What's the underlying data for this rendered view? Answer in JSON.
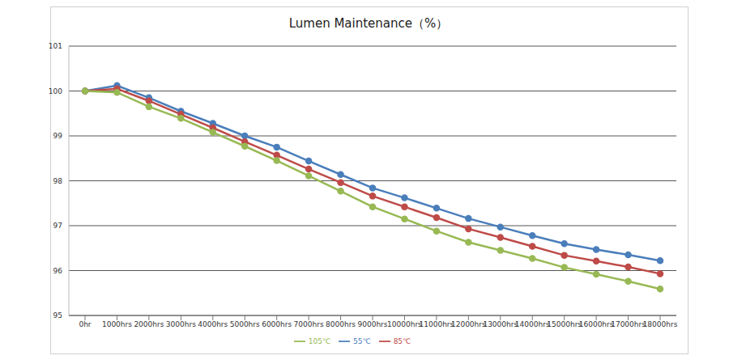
{
  "chart_data": {
    "type": "line",
    "title": "Lumen Maintenance（%）",
    "categories": [
      "0hr",
      "1000hrs",
      "2000hrs",
      "3000hrs",
      "4000hrs",
      "5000hrs",
      "6000hrs",
      "7000hrs",
      "8000hrs",
      "9000hrs",
      "10000hrs",
      "11000hrs",
      "12000hrs",
      "13000hrs",
      "14000hrs",
      "15000hrs",
      "16000hrs",
      "17000hrs",
      "18000hrs"
    ],
    "series": [
      {
        "name": "55℃",
        "color": "#4a7ebb",
        "values": [
          100,
          100.12,
          99.85,
          99.55,
          99.28,
          99.0,
          98.75,
          98.44,
          98.14,
          97.84,
          97.62,
          97.39,
          97.16,
          96.97,
          96.78,
          96.6,
          96.47,
          96.35,
          96.22
        ]
      },
      {
        "name": "85℃",
        "color": "#be4b48",
        "values": [
          100,
          100.05,
          99.78,
          99.48,
          99.18,
          98.87,
          98.57,
          98.26,
          97.96,
          97.66,
          97.42,
          97.18,
          96.93,
          96.74,
          96.54,
          96.34,
          96.21,
          96.08,
          95.93
        ]
      },
      {
        "name": "105℃",
        "color": "#98b954",
        "values": [
          100,
          99.97,
          99.65,
          99.39,
          99.08,
          98.77,
          98.45,
          98.11,
          97.77,
          97.42,
          97.15,
          96.88,
          96.63,
          96.45,
          96.27,
          96.07,
          95.92,
          95.76,
          95.59
        ]
      }
    ],
    "ylim": [
      95,
      101
    ],
    "yticks": [
      95,
      96,
      97,
      98,
      99,
      100,
      101
    ],
    "grid": true,
    "legend": "bottom",
    "marker": "circle"
  }
}
